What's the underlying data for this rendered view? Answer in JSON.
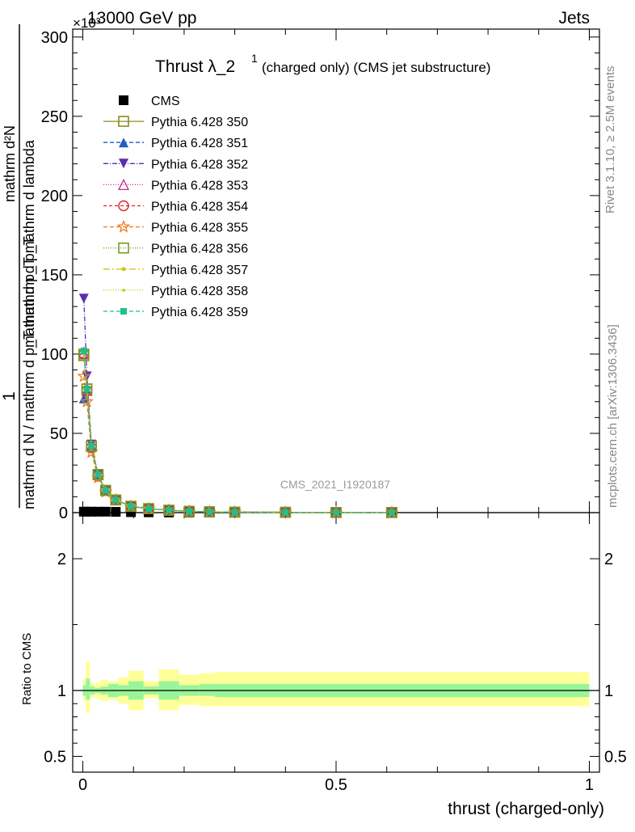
{
  "header": {
    "left": "13000 GeV pp",
    "right": "Jets",
    "exponent": "×10³"
  },
  "side_labels": {
    "rivet": "Rivet 3.1.10, ≥ 2.5M events",
    "mcplots": "mcplots.cern.ch [arXiv:1306.3436]"
  },
  "chart_data": [
    {
      "type": "line",
      "title": "Thrust λ_2¹ (charged only) (CMS jet substructure)",
      "title_main": "Thrust λ_2",
      "title_sup": "1",
      "title_rest": "(charged only) (CMS jet substructure)",
      "analysis_label": "CMS_2021_I1920187",
      "ylabel_numerator": "mathrm d²N",
      "ylabel_denominator": "mathrm d p_T mathrm d lambda",
      "ylabel_one": "1",
      "ylabel_norm": "mathrm d N / mathrm d p_T mathrm d p_T",
      "ylim": [
        0,
        305
      ],
      "y_unit_exponent": 3,
      "yticks": [
        0,
        50,
        100,
        150,
        200,
        250,
        300
      ],
      "ytick_labels": [
        "0",
        "50",
        "100",
        "150",
        "200",
        "250",
        "300"
      ],
      "xlim": [
        -0.02,
        1.02
      ],
      "x": [
        0.002,
        0.008,
        0.017,
        0.03,
        0.045,
        0.065,
        0.095,
        0.13,
        0.17,
        0.21,
        0.25,
        0.3,
        0.4,
        0.5,
        0.61
      ],
      "series": [
        {
          "name": "CMS",
          "color": "#000000",
          "marker": "square-filled",
          "values": [
            0.6,
            0.6,
            0.6,
            0.6,
            0.6,
            0.5,
            0.3,
            0.2,
            0.1,
            0.1,
            0.05,
            0.03,
            0.02,
            0.01,
            0.01
          ]
        },
        {
          "name": "Pythia 6.428 350",
          "color": "#8b8b22",
          "marker": "square-open",
          "dash": "",
          "values": [
            100,
            78,
            42,
            24,
            14,
            8,
            4,
            2.5,
            1.5,
            0.8,
            0.5,
            0.3,
            0.2,
            0.1,
            0.1
          ]
        },
        {
          "name": "Pythia 6.428 351",
          "color": "#1f5fbf",
          "marker": "triangle-up-filled",
          "dash": "5,3",
          "values": [
            72,
            77,
            42,
            24,
            14,
            8,
            4,
            2.5,
            1.5,
            0.8,
            0.5,
            0.3,
            0.2,
            0.1,
            0.1
          ]
        },
        {
          "name": "Pythia 6.428 352",
          "color": "#5b2db0",
          "marker": "triangle-down-filled",
          "dash": "6,2,1,2",
          "values": [
            135,
            86,
            43,
            24,
            14,
            8,
            4,
            2.5,
            1.5,
            0.8,
            0.5,
            0.3,
            0.2,
            0.1,
            0.1
          ]
        },
        {
          "name": "Pythia 6.428 353",
          "color": "#c0308a",
          "marker": "triangle-up-open",
          "dash": "1,2",
          "values": [
            101,
            77,
            42,
            24,
            14,
            8,
            4,
            2.5,
            1.5,
            0.8,
            0.5,
            0.3,
            0.2,
            0.1,
            0.1
          ]
        },
        {
          "name": "Pythia 6.428 354",
          "color": "#e0202a",
          "marker": "circle-open",
          "dash": "4,3",
          "values": [
            100,
            77,
            41,
            23,
            14,
            8,
            4,
            2.5,
            1.5,
            0.8,
            0.5,
            0.3,
            0.2,
            0.1,
            0.1
          ]
        },
        {
          "name": "Pythia 6.428 355",
          "color": "#f07a1e",
          "marker": "star-open",
          "dash": "5,3",
          "values": [
            86,
            70,
            38,
            22,
            13,
            8,
            4,
            2.5,
            1.5,
            0.8,
            0.5,
            0.3,
            0.2,
            0.1,
            0.1
          ]
        },
        {
          "name": "Pythia 6.428 356",
          "color": "#7a9a20",
          "marker": "square-open",
          "dash": "1,2",
          "values": [
            99,
            78,
            42,
            24,
            14,
            8,
            4,
            2.5,
            1.5,
            0.8,
            0.5,
            0.3,
            0.2,
            0.1,
            0.1
          ]
        },
        {
          "name": "Pythia 6.428 357",
          "color": "#d4c020",
          "marker": "dot",
          "dash": "8,3,2,3",
          "values": [
            100,
            78,
            42,
            24,
            14,
            8,
            4,
            2.5,
            1.5,
            0.8,
            0.5,
            0.3,
            0.2,
            0.1,
            0.1
          ]
        },
        {
          "name": "Pythia 6.428 358",
          "color": "#b5cf10",
          "marker": "small-dot",
          "dash": "1,2",
          "values": [
            100,
            78,
            42,
            24,
            14,
            8,
            4,
            2.5,
            1.5,
            0.8,
            0.5,
            0.3,
            0.2,
            0.1,
            0.1
          ]
        },
        {
          "name": "Pythia 6.428 359",
          "color": "#20c08a",
          "marker": "square-filled-small",
          "dash": "5,3",
          "values": [
            102,
            78,
            42,
            24,
            14,
            8,
            4,
            2.5,
            1.5,
            0.8,
            0.5,
            0.3,
            0.2,
            0.1,
            0.1
          ]
        }
      ]
    },
    {
      "type": "area",
      "ylabel": "Ratio to CMS",
      "xlabel": "thrust (charged-only)",
      "xlim": [
        -0.02,
        1.02
      ],
      "ylim": [
        0.38,
        2.35
      ],
      "xticks": [
        0,
        0.5,
        1
      ],
      "xtick_labels": [
        "0",
        "0.5",
        "1"
      ],
      "yticks": [
        0.5,
        1,
        2
      ],
      "ytick_labels": [
        "0.5",
        "1",
        "2"
      ],
      "reference_line": 1,
      "bin_edges": [
        0.0,
        0.006,
        0.014,
        0.024,
        0.035,
        0.05,
        0.07,
        0.09,
        0.12,
        0.15,
        0.19,
        0.23,
        0.26,
        1.0
      ],
      "green_band": [
        [
          0.96,
          1.04
        ],
        [
          0.93,
          1.09
        ],
        [
          0.97,
          1.03
        ],
        [
          0.98,
          1.02
        ],
        [
          0.97,
          1.03
        ],
        [
          0.95,
          1.05
        ],
        [
          0.96,
          1.04
        ],
        [
          0.93,
          1.07
        ],
        [
          0.97,
          1.03
        ],
        [
          0.93,
          1.07
        ],
        [
          0.96,
          1.04
        ],
        [
          0.96,
          1.05
        ],
        [
          0.95,
          1.05
        ]
      ],
      "yellow_band": [
        [
          0.92,
          1.08
        ],
        [
          0.83,
          1.22
        ],
        [
          0.95,
          1.05
        ],
        [
          0.94,
          1.06
        ],
        [
          0.92,
          1.08
        ],
        [
          0.93,
          1.07
        ],
        [
          0.9,
          1.1
        ],
        [
          0.85,
          1.15
        ],
        [
          0.94,
          1.07
        ],
        [
          0.85,
          1.16
        ],
        [
          0.89,
          1.12
        ],
        [
          0.88,
          1.13
        ],
        [
          0.88,
          1.14
        ]
      ]
    }
  ]
}
